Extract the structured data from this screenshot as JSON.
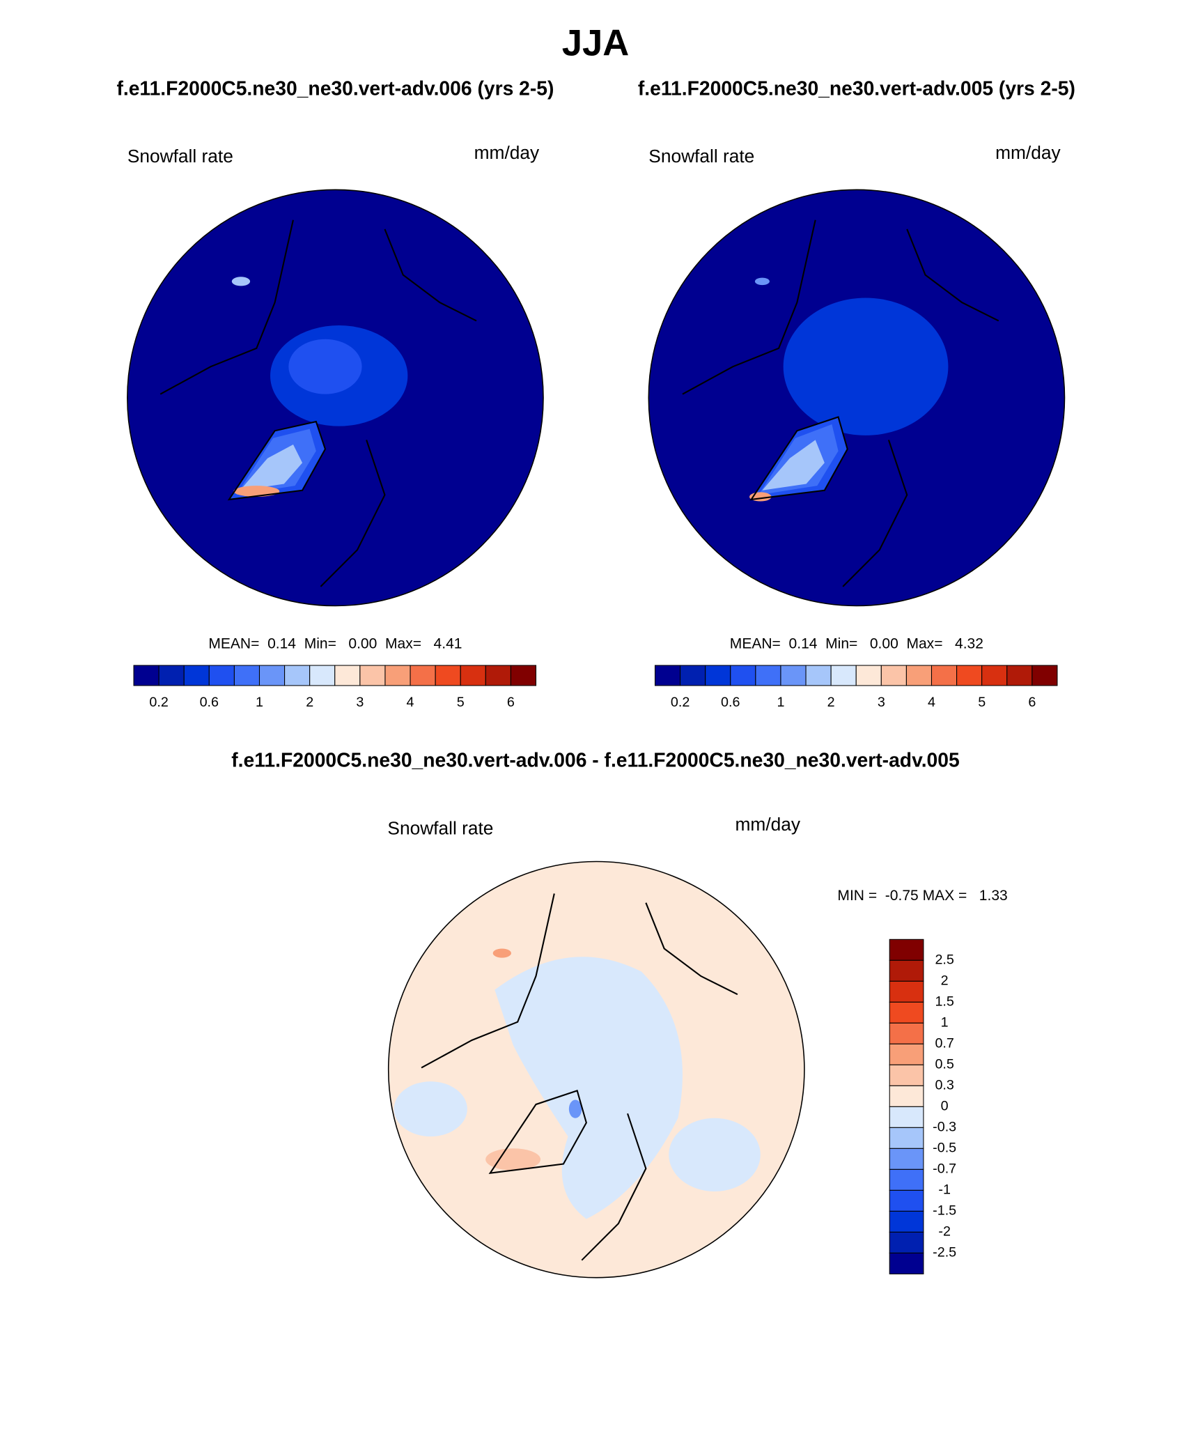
{
  "title": "JJA",
  "panels": [
    {
      "caption": "f.e11.F2000C5.ne30_ne30.vert-adv.006 (yrs 2-5)",
      "variable": "Snowfall rate",
      "units": "mm/day",
      "stats": "MEAN=  0.14  Min=   0.00  Max=   4.41",
      "colorbar": {
        "levels": [
          0.2,
          0.6,
          1,
          2,
          3,
          4,
          5,
          6
        ],
        "colors": [
          "#000090",
          "#0020b0",
          "#0036d8",
          "#1f50f0",
          "#3f70f8",
          "#6a95f8",
          "#a6c6fa",
          "#d8e8fc",
          "#fde8d8",
          "#fbc4a8",
          "#f89f78",
          "#f47048",
          "#ef4a20",
          "#d83010",
          "#b01a08",
          "#800000"
        ]
      }
    },
    {
      "caption": "f.e11.F2000C5.ne30_ne30.vert-adv.005 (yrs 2-5)",
      "variable": "Snowfall rate",
      "units": "mm/day",
      "stats": "MEAN=  0.14  Min=   0.00  Max=   4.32",
      "colorbar": {
        "levels": [
          0.2,
          0.6,
          1,
          2,
          3,
          4,
          5,
          6
        ],
        "colors": [
          "#000090",
          "#0020b0",
          "#0036d8",
          "#1f50f0",
          "#3f70f8",
          "#6a95f8",
          "#a6c6fa",
          "#d8e8fc",
          "#fde8d8",
          "#fbc4a8",
          "#f89f78",
          "#f47048",
          "#ef4a20",
          "#d83010",
          "#b01a08",
          "#800000"
        ]
      }
    }
  ],
  "difference": {
    "caption": "f.e11.F2000C5.ne30_ne30.vert-adv.006 - f.e11.F2000C5.ne30_ne30.vert-adv.005",
    "variable": "Snowfall rate",
    "units": "mm/day",
    "stats": "MIN =  -0.75 MAX =   1.33",
    "colorbar": {
      "levels": [
        2.5,
        2,
        1.5,
        1,
        0.7,
        0.5,
        0.3,
        0,
        -0.3,
        -0.5,
        -0.7,
        -1,
        -1.5,
        -2,
        -2.5
      ],
      "colors": [
        "#800000",
        "#b01a08",
        "#d83010",
        "#ef4a20",
        "#f47048",
        "#f89f78",
        "#fbc4a8",
        "#fde8d8",
        "#d8e8fc",
        "#a6c6fa",
        "#6a95f8",
        "#3f70f8",
        "#1f50f0",
        "#0036d8",
        "#0020b0",
        "#000090"
      ]
    }
  }
}
